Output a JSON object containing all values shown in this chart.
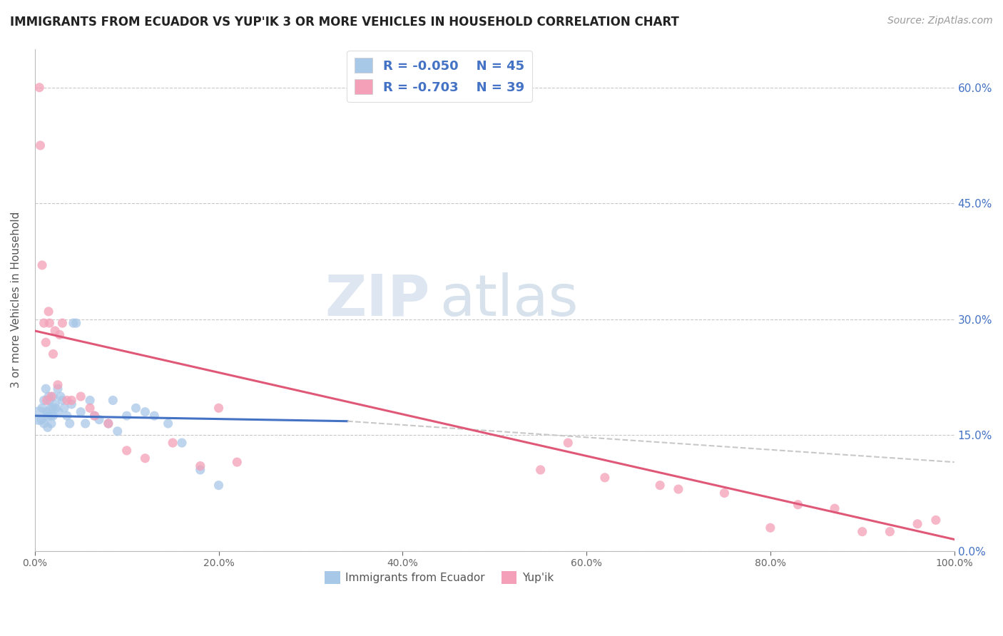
{
  "title": "IMMIGRANTS FROM ECUADOR VS YUP'IK 3 OR MORE VEHICLES IN HOUSEHOLD CORRELATION CHART",
  "source": "Source: ZipAtlas.com",
  "ylabel": "3 or more Vehicles in Household",
  "xlabel": "",
  "legend_label1": "Immigrants from Ecuador",
  "legend_label2": "Yup'ik",
  "r1": -0.05,
  "n1": 45,
  "r2": -0.703,
  "n2": 39,
  "color1": "#a8c8e8",
  "color2": "#f4a0b8",
  "line_color1": "#4472c4",
  "line_color2": "#e05878",
  "background_color": "#ffffff",
  "grid_color": "#c8c8c8",
  "watermark_zip": "ZIP",
  "watermark_atlas": "atlas",
  "xlim": [
    0,
    1.0
  ],
  "ylim": [
    0,
    0.65
  ],
  "xticks": [
    0.0,
    0.2,
    0.4,
    0.6,
    0.8,
    1.0
  ],
  "xtick_labels": [
    "0.0%",
    "20.0%",
    "40.0%",
    "60.0%",
    "80.0%",
    "100.0%"
  ],
  "ytick_positions": [
    0.0,
    0.15,
    0.3,
    0.45,
    0.6
  ],
  "ytick_labels_right": [
    "0.0%",
    "15.0%",
    "30.0%",
    "45.0%",
    "60.0%"
  ],
  "blue_x": [
    0.005,
    0.007,
    0.008,
    0.01,
    0.01,
    0.012,
    0.013,
    0.014,
    0.015,
    0.015,
    0.016,
    0.017,
    0.018,
    0.018,
    0.019,
    0.02,
    0.02,
    0.022,
    0.023,
    0.025,
    0.026,
    0.028,
    0.03,
    0.032,
    0.035,
    0.038,
    0.04,
    0.042,
    0.045,
    0.05,
    0.055,
    0.06,
    0.065,
    0.07,
    0.08,
    0.085,
    0.09,
    0.1,
    0.11,
    0.12,
    0.13,
    0.145,
    0.16,
    0.18,
    0.2
  ],
  "blue_y": [
    0.175,
    0.17,
    0.185,
    0.195,
    0.165,
    0.21,
    0.18,
    0.16,
    0.2,
    0.175,
    0.195,
    0.185,
    0.175,
    0.165,
    0.185,
    0.2,
    0.175,
    0.19,
    0.185,
    0.21,
    0.18,
    0.2,
    0.195,
    0.185,
    0.175,
    0.165,
    0.19,
    0.295,
    0.295,
    0.18,
    0.165,
    0.195,
    0.175,
    0.17,
    0.165,
    0.195,
    0.155,
    0.175,
    0.185,
    0.18,
    0.175,
    0.165,
    0.14,
    0.105,
    0.085
  ],
  "blue_sizes": [
    350,
    90,
    90,
    90,
    90,
    90,
    90,
    90,
    90,
    90,
    90,
    90,
    90,
    90,
    90,
    90,
    90,
    90,
    90,
    90,
    90,
    90,
    90,
    90,
    90,
    90,
    90,
    90,
    90,
    90,
    90,
    90,
    90,
    90,
    90,
    90,
    90,
    90,
    90,
    90,
    90,
    90,
    90,
    90,
    90
  ],
  "pink_x": [
    0.005,
    0.006,
    0.008,
    0.01,
    0.012,
    0.013,
    0.015,
    0.016,
    0.018,
    0.02,
    0.022,
    0.025,
    0.027,
    0.03,
    0.035,
    0.04,
    0.05,
    0.06,
    0.065,
    0.08,
    0.1,
    0.12,
    0.15,
    0.18,
    0.2,
    0.22,
    0.55,
    0.58,
    0.62,
    0.68,
    0.7,
    0.75,
    0.8,
    0.83,
    0.87,
    0.9,
    0.93,
    0.96,
    0.98
  ],
  "pink_y": [
    0.6,
    0.525,
    0.37,
    0.295,
    0.27,
    0.195,
    0.31,
    0.295,
    0.2,
    0.255,
    0.285,
    0.215,
    0.28,
    0.295,
    0.195,
    0.195,
    0.2,
    0.185,
    0.175,
    0.165,
    0.13,
    0.12,
    0.14,
    0.11,
    0.185,
    0.115,
    0.105,
    0.14,
    0.095,
    0.085,
    0.08,
    0.075,
    0.03,
    0.06,
    0.055,
    0.025,
    0.025,
    0.035,
    0.04
  ],
  "pink_sizes": [
    90,
    90,
    90,
    90,
    90,
    90,
    90,
    90,
    90,
    90,
    90,
    90,
    90,
    90,
    90,
    90,
    90,
    90,
    90,
    90,
    90,
    90,
    90,
    90,
    90,
    90,
    90,
    90,
    90,
    90,
    90,
    90,
    90,
    90,
    90,
    90,
    90,
    90,
    90
  ],
  "blue_line_x0": 0.0,
  "blue_line_x1": 0.34,
  "blue_line_y0": 0.175,
  "blue_line_y1": 0.168,
  "dash_line_x0": 0.34,
  "dash_line_x1": 1.0,
  "dash_line_y0": 0.168,
  "dash_line_y1": 0.115,
  "pink_line_x0": 0.0,
  "pink_line_x1": 1.0,
  "pink_line_y0": 0.285,
  "pink_line_y1": 0.015
}
